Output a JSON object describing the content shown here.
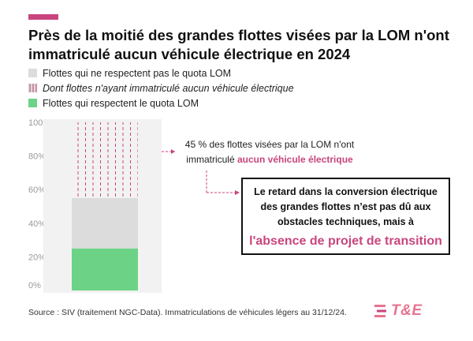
{
  "title": "Près de la moitié des grandes flottes visées par la LOM n'ont immatriculé aucun véhicule électrique en 2024",
  "legend": [
    {
      "label": "Flottes qui ne respectent pas le quota LOM",
      "color": "#dcdcdc",
      "style": "solid"
    },
    {
      "label": "Dont flottes n'ayant immatriculé aucun véhicule électrique",
      "color": "#c9457e",
      "style": "hatched"
    },
    {
      "label": "Flottes qui respectent le quota LOM",
      "color": "#6cd386",
      "style": "solid"
    }
  ],
  "annotation": {
    "text": "45 % des flottes visées par la LOM n'ont immatriculé",
    "highlight": "aucun véhicule électrique"
  },
  "callout": {
    "line1": "Le retard dans la conversion électrique",
    "line2": "des grandes flottes n’est pas dû aux",
    "line3": "obstacles techniques, mais à",
    "emphasis": "l'absence de projet de transition"
  },
  "source": "Source : SIV (traitement NGC-Data). Immatriculations de véhicules légers au 31/12/24.",
  "logo": "T&E",
  "colors": {
    "accent": "#c9457e",
    "green": "#6cd386",
    "grey": "#dcdcdc"
  },
  "chart_data": {
    "type": "bar",
    "stacked": true,
    "categories": [
      ""
    ],
    "series": [
      {
        "name": "Flottes qui respectent le quota LOM",
        "values": [
          25
        ]
      },
      {
        "name": "Flottes qui ne respectent pas le quota LOM",
        "values": [
          30
        ]
      },
      {
        "name": "Dont flottes n'ayant immatriculé aucun véhicule électrique",
        "values": [
          45
        ]
      }
    ],
    "yticks": [
      "0%",
      "20%",
      "40%",
      "60%",
      "80%",
      "100%"
    ],
    "ylim": [
      0,
      100
    ],
    "grid": false,
    "legend_position": "top-left"
  }
}
